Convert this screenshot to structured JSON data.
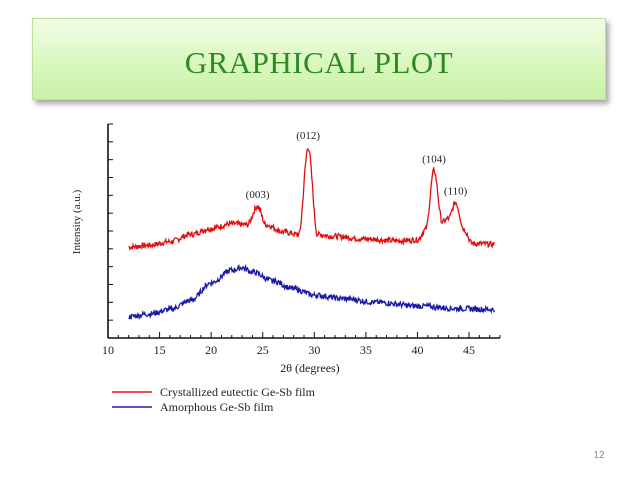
{
  "slide": {
    "title": "GRAPHICAL PLOT",
    "page_number": "12"
  },
  "chart_data": {
    "type": "line",
    "title": "",
    "xlabel": "2θ (degrees)",
    "ylabel": "Intensity (a.u.)",
    "xlim": [
      10,
      48
    ],
    "xticks": [
      10,
      15,
      20,
      25,
      30,
      35,
      40,
      45
    ],
    "y_ticks_labeled": false,
    "grid": false,
    "legend_position": "bottom-left",
    "series": [
      {
        "name": "Crystallized eutectic Ge-Sb film",
        "color": "#e01010",
        "points": [
          [
            12,
            1.6
          ],
          [
            14,
            1.7
          ],
          [
            16,
            1.9
          ],
          [
            18,
            2.3
          ],
          [
            20,
            2.65
          ],
          [
            22,
            2.9
          ],
          [
            23.5,
            2.85
          ],
          [
            24.5,
            3.9
          ],
          [
            25.3,
            2.85
          ],
          [
            27,
            2.45
          ],
          [
            28.5,
            2.3
          ],
          [
            29.4,
            7.2
          ],
          [
            30.3,
            2.3
          ],
          [
            32,
            2.2
          ],
          [
            35,
            2.05
          ],
          [
            38,
            1.95
          ],
          [
            40,
            2.0
          ],
          [
            40.8,
            2.6
          ],
          [
            41.6,
            5.9
          ],
          [
            42.4,
            3.0
          ],
          [
            43,
            3.2
          ],
          [
            43.7,
            4.1
          ],
          [
            44.5,
            2.6
          ],
          [
            45.3,
            1.8
          ],
          [
            47.5,
            1.75
          ]
        ]
      },
      {
        "name": "Amorphous Ge-Sb film",
        "color": "#1a1aaa",
        "points": [
          [
            12,
            -2.3
          ],
          [
            14,
            -2.15
          ],
          [
            16,
            -1.9
          ],
          [
            18,
            -1.4
          ],
          [
            20,
            -0.4
          ],
          [
            22,
            0.3
          ],
          [
            23,
            0.45
          ],
          [
            24,
            0.2
          ],
          [
            26,
            -0.3
          ],
          [
            28,
            -0.75
          ],
          [
            30,
            -1.1
          ],
          [
            33,
            -1.3
          ],
          [
            36,
            -1.5
          ],
          [
            40,
            -1.7
          ],
          [
            44,
            -1.85
          ],
          [
            47.5,
            -1.9
          ]
        ]
      }
    ],
    "peak_annotations": [
      {
        "label": "(003)",
        "x": 24.5,
        "y": 3.9
      },
      {
        "label": "(012)",
        "x": 29.4,
        "y": 7.2
      },
      {
        "label": "(104)",
        "x": 41.6,
        "y": 5.9
      },
      {
        "label": "(110)",
        "x": 43.7,
        "y": 4.1
      }
    ]
  }
}
